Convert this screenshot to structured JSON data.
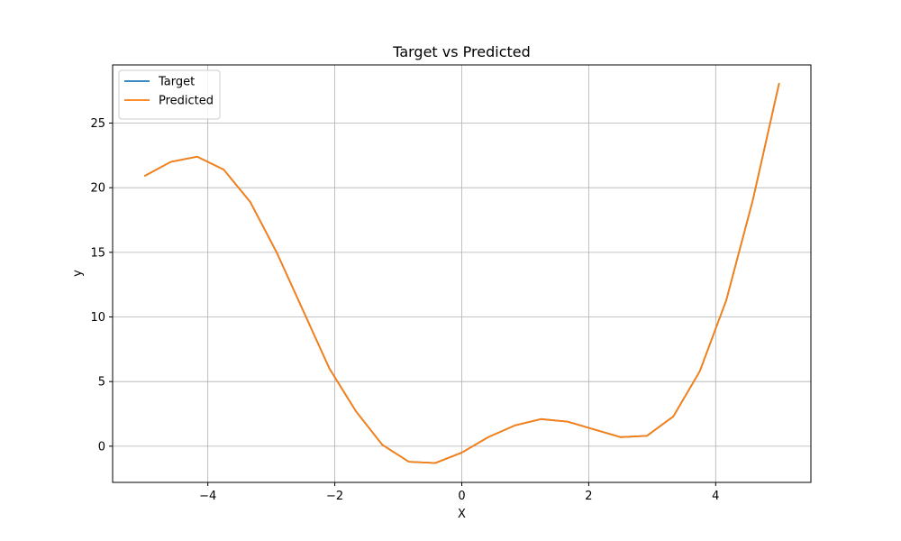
{
  "chart_data": {
    "type": "line",
    "title": "Target vs Predicted",
    "xlabel": "X",
    "ylabel": "y",
    "xlim": [
      -5.5,
      5.5
    ],
    "ylim": [
      -2.8,
      29.5
    ],
    "xticks": [
      -4,
      -2,
      0,
      2,
      4
    ],
    "xtick_labels": [
      "−4",
      "−2",
      "0",
      "2",
      "4"
    ],
    "yticks": [
      0,
      5,
      10,
      15,
      20,
      25
    ],
    "ytick_labels": [
      "0",
      "5",
      "10",
      "15",
      "20",
      "25"
    ],
    "grid": true,
    "legend_position": "top-left",
    "series": [
      {
        "name": "Target",
        "color": "#1f77b4",
        "x": [
          -5.0,
          -4.583,
          -4.167,
          -3.75,
          -3.333,
          -2.917,
          -2.5,
          -2.083,
          -1.667,
          -1.25,
          -0.833,
          -0.417,
          0.0,
          0.417,
          0.833,
          1.25,
          1.667,
          2.083,
          2.5,
          2.917,
          3.333,
          3.75,
          4.167,
          4.583,
          5.0
        ],
        "y": [
          20.9,
          22.0,
          22.4,
          21.4,
          18.9,
          15.0,
          10.5,
          6.0,
          2.7,
          0.1,
          -1.2,
          -1.3,
          -0.5,
          0.7,
          1.6,
          2.1,
          1.9,
          1.3,
          0.7,
          0.8,
          2.3,
          5.8,
          11.3,
          19.0,
          28.1
        ]
      },
      {
        "name": "Predicted",
        "color": "#ff7f0e",
        "x": [
          -5.0,
          -4.583,
          -4.167,
          -3.75,
          -3.333,
          -2.917,
          -2.5,
          -2.083,
          -1.667,
          -1.25,
          -0.833,
          -0.417,
          0.0,
          0.417,
          0.833,
          1.25,
          1.667,
          2.083,
          2.5,
          2.917,
          3.333,
          3.75,
          4.167,
          4.583,
          5.0
        ],
        "y": [
          20.9,
          22.0,
          22.4,
          21.4,
          18.9,
          15.0,
          10.5,
          6.0,
          2.7,
          0.1,
          -1.2,
          -1.3,
          -0.5,
          0.7,
          1.6,
          2.1,
          1.9,
          1.3,
          0.7,
          0.8,
          2.3,
          5.8,
          11.3,
          19.0,
          28.1
        ]
      }
    ]
  }
}
